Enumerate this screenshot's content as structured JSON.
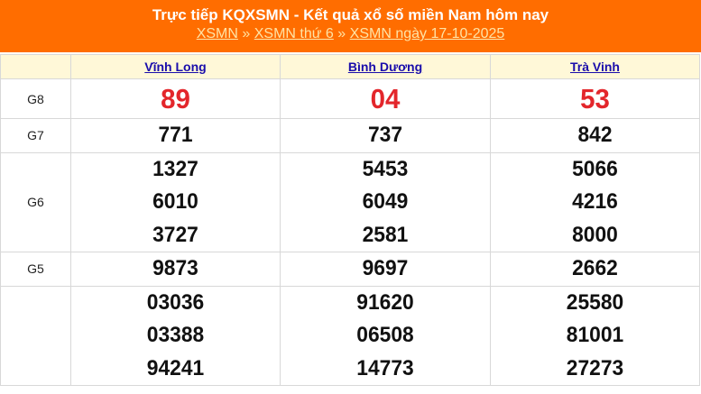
{
  "header": {
    "title": "Trực tiếp KQXSMN - Kết quả xổ số miền Nam hôm nay",
    "breadcrumb": [
      "XSMN",
      "XSMN thứ 6",
      "XSMN ngày 17-10-2025"
    ],
    "separator": "»"
  },
  "colors": {
    "header_bg": "#ff6d00",
    "special": "#e3262b"
  },
  "provinces": [
    "Vĩnh Long",
    "Bình Dương",
    "Trà Vinh"
  ],
  "prizes": [
    {
      "label": "G8",
      "special": true,
      "values": [
        [
          "89"
        ],
        [
          "04"
        ],
        [
          "53"
        ]
      ]
    },
    {
      "label": "G7",
      "values": [
        [
          "771"
        ],
        [
          "737"
        ],
        [
          "842"
        ]
      ]
    },
    {
      "label": "G6",
      "values": [
        [
          "1327",
          "6010",
          "3727"
        ],
        [
          "5453",
          "6049",
          "2581"
        ],
        [
          "5066",
          "4216",
          "8000"
        ]
      ]
    },
    {
      "label": "G5",
      "values": [
        [
          "9873"
        ],
        [
          "9697"
        ],
        [
          "2662"
        ]
      ]
    },
    {
      "label": "",
      "values": [
        [
          "03036",
          "03388",
          "94241"
        ],
        [
          "91620",
          "06508",
          "14773"
        ],
        [
          "25580",
          "81001",
          "27273"
        ]
      ]
    }
  ]
}
